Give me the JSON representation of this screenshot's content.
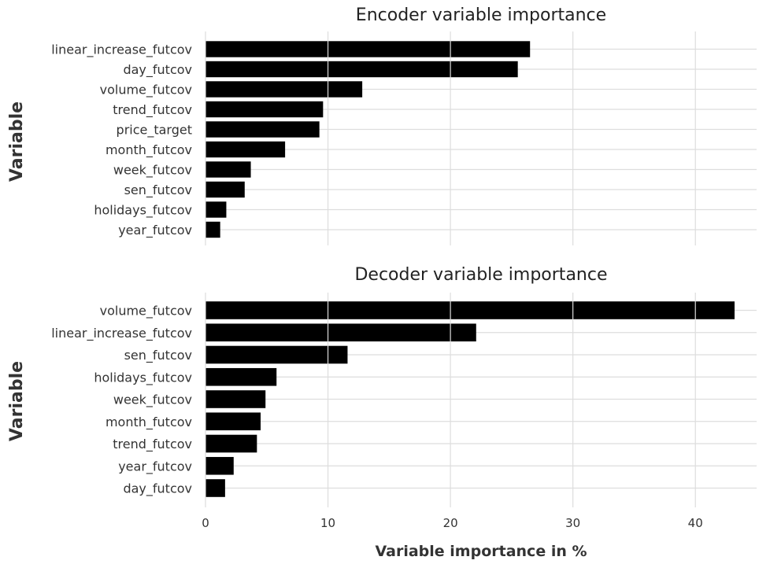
{
  "colors": {
    "bar": "#000000",
    "grid": "#dddddd",
    "text": "#333333",
    "background": "#ffffff"
  },
  "chart_data": [
    {
      "type": "bar",
      "orientation": "horizontal",
      "title": "Encoder variable importance",
      "ylabel": "Variable",
      "xlabel": "",
      "xlim": [
        0,
        45
      ],
      "grid": true,
      "categories": [
        "linear_increase_futcov",
        "day_futcov",
        "volume_futcov",
        "trend_futcov",
        "price_target",
        "month_futcov",
        "week_futcov",
        "sen_futcov",
        "holidays_futcov",
        "year_futcov"
      ],
      "values": [
        26.5,
        25.5,
        12.8,
        9.6,
        9.3,
        6.5,
        3.7,
        3.2,
        1.7,
        1.2
      ]
    },
    {
      "type": "bar",
      "orientation": "horizontal",
      "title": "Decoder variable importance",
      "ylabel": "Variable",
      "xlabel": "Variable importance in %",
      "xlim": [
        0,
        45
      ],
      "xticks": [
        "0",
        "10",
        "20",
        "30",
        "40"
      ],
      "grid": true,
      "categories": [
        "volume_futcov",
        "linear_increase_futcov",
        "sen_futcov",
        "holidays_futcov",
        "week_futcov",
        "month_futcov",
        "trend_futcov",
        "year_futcov",
        "day_futcov"
      ],
      "values": [
        43.2,
        22.1,
        11.6,
        5.8,
        4.9,
        4.5,
        4.2,
        2.3,
        1.6
      ]
    }
  ]
}
